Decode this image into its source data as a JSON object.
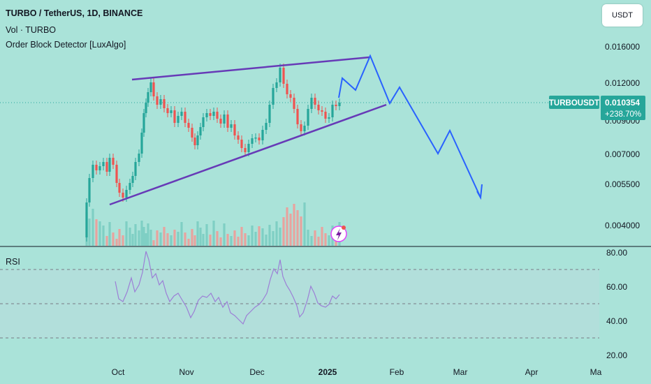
{
  "header": {
    "symbol_line": "TURBO / TetherUS, 1D, BINANCE",
    "volume_label": "Vol · TURBO",
    "indicator_label": "Order Block Detector [LuxAlgo]"
  },
  "currency_button": "USDT",
  "price_axis": {
    "ticks": [
      "0.016000",
      "0.012000",
      "0.009000",
      "0.007000",
      "0.005500",
      "0.004000"
    ],
    "hidden_tick": "0.009000"
  },
  "price_badge": {
    "symbol": "TURBOUSDT",
    "price": "0.010354",
    "change": "+238.70%",
    "color": "#26a69a"
  },
  "rsi": {
    "label": "RSI",
    "ticks": [
      "80.00",
      "60.00",
      "40.00",
      "20.00"
    ],
    "upper_band": 70,
    "lower_band": 30,
    "line_color": "#9c7fd6",
    "band_fill": "#b2dfdb"
  },
  "time_axis": [
    "Oct",
    "Nov",
    "Dec",
    "2025",
    "Feb",
    "Mar",
    "Apr",
    "Ma"
  ],
  "colors": {
    "background": "#aae3d9",
    "up": "#26a69a",
    "down": "#ef5350",
    "trendline": "#673ab7",
    "projection": "#2962ff"
  },
  "chart_data": {
    "type": "candlestick",
    "pattern": "rising wedge",
    "projection": "blue arrow path breaking down from the wedge toward ~0.005 by early March",
    "y_scale": "log",
    "panes": [
      "price",
      "volume",
      "RSI"
    ]
  }
}
